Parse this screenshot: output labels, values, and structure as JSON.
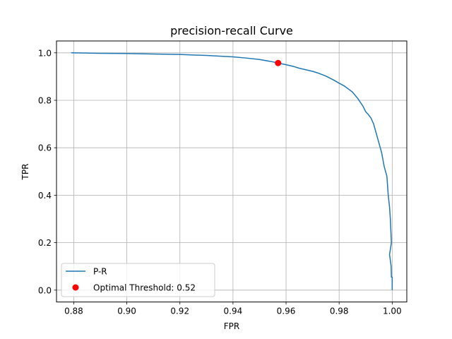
{
  "chart_data": {
    "type": "line",
    "title": "precision-recall Curve",
    "xlabel": "FPR",
    "ylabel": "TPR",
    "xlim": [
      0.8735,
      1.0055
    ],
    "ylim": [
      -0.05,
      1.05
    ],
    "xticks": [
      0.88,
      0.9,
      0.92,
      0.94,
      0.96,
      0.98,
      1.0
    ],
    "xtick_labels": [
      "0.88",
      "0.90",
      "0.92",
      "0.94",
      "0.96",
      "0.98",
      "1.00"
    ],
    "yticks": [
      0.0,
      0.2,
      0.4,
      0.6,
      0.8,
      1.0
    ],
    "ytick_labels": [
      "0.0",
      "0.2",
      "0.4",
      "0.6",
      "0.8",
      "1.0"
    ],
    "grid": true,
    "legend_position": "bottom-left",
    "series": [
      {
        "name": "P-R",
        "color": "#1f77b4",
        "x": [
          0.879,
          0.885,
          0.89,
          0.9,
          0.91,
          0.92,
          0.925,
          0.93,
          0.935,
          0.94,
          0.945,
          0.95,
          0.955,
          0.957,
          0.96,
          0.963,
          0.965,
          0.97,
          0.972,
          0.975,
          0.978,
          0.98,
          0.982,
          0.985,
          0.987,
          0.989,
          0.99,
          0.991,
          0.992,
          0.993,
          0.994,
          0.995,
          0.996,
          0.997,
          0.998,
          0.9985,
          0.999,
          0.9993,
          0.9995,
          0.9997,
          0.999,
          0.9996,
          0.9997,
          1.0,
          1.0
        ],
        "y": [
          1.0,
          0.999,
          0.998,
          0.997,
          0.995,
          0.993,
          0.991,
          0.989,
          0.986,
          0.983,
          0.978,
          0.972,
          0.962,
          0.957,
          0.95,
          0.942,
          0.935,
          0.922,
          0.915,
          0.902,
          0.885,
          0.872,
          0.86,
          0.835,
          0.808,
          0.775,
          0.752,
          0.74,
          0.725,
          0.7,
          0.66,
          0.62,
          0.58,
          0.52,
          0.48,
          0.4,
          0.35,
          0.3,
          0.25,
          0.2,
          0.15,
          0.1,
          0.055,
          0.055,
          0.0
        ]
      },
      {
        "name": "Optimal Threshold: 0.52",
        "color": "#ff0000",
        "marker": "circle",
        "x": [
          0.957
        ],
        "y": [
          0.957
        ]
      }
    ]
  }
}
